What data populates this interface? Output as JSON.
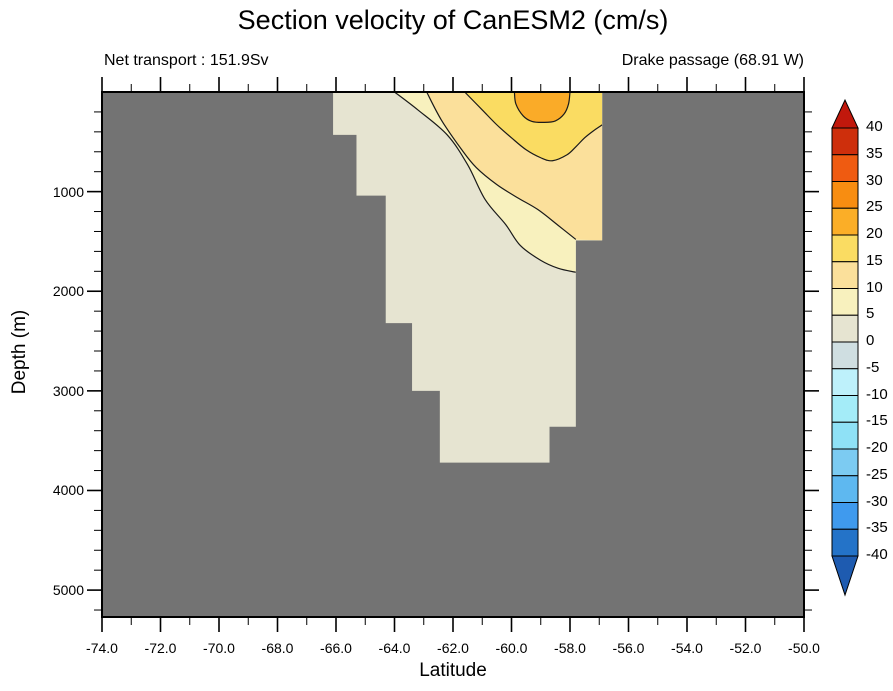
{
  "header": {
    "title": "Section velocity of CanESM2 (cm/s)",
    "left_annotation": "Net transport : 151.9Sv",
    "right_annotation": "Drake passage (68.91 W)"
  },
  "chart_data": {
    "type": "filled_contour_section",
    "title": "Section velocity of CanESM2 (cm/s)",
    "units": "cm/s",
    "net_transport": "151.9Sv",
    "section_location": "Drake passage (68.91 W)",
    "xlabel": "Latitude",
    "ylabel": "Depth (m)",
    "grid": false,
    "background_color": "#737373",
    "frame_color": "#000000",
    "contour_line_color": "#1a1a1a",
    "x_axis": {
      "min": -74,
      "max": -50,
      "major_tick_step": 2,
      "minor_tick_step": 1,
      "major_tick_labels": [
        "-74.0",
        "-72.0",
        "-70.0",
        "-68.0",
        "-66.0",
        "-64.0",
        "-62.0",
        "-60.0",
        "-58.0",
        "-56.0",
        "-54.0",
        "-52.0",
        "-50.0"
      ]
    },
    "y_axis": {
      "min": 0,
      "max": 5270,
      "inverted": true,
      "major_tick_step_m": 1000,
      "minor_tick_step_m": 200,
      "major_tick_labels": [
        "1000",
        "2000",
        "3000",
        "4000",
        "5000"
      ]
    },
    "fill_levels": [
      {
        "min": 0,
        "max": 5,
        "color": "#E6E4D1"
      },
      {
        "min": 5,
        "max": 10,
        "color": "#F8F1BE"
      },
      {
        "min": 10,
        "max": 15,
        "color": "#FBE09B"
      },
      {
        "min": 15,
        "max": 20,
        "color": "#FADC62"
      },
      {
        "min": 20,
        "max": 25,
        "color": "#FAAB28"
      }
    ],
    "water_polygon": [
      [
        -66.1,
        0
      ],
      [
        -66.1,
        430
      ],
      [
        -65.3,
        430
      ],
      [
        -65.3,
        1040
      ],
      [
        -64.3,
        1040
      ],
      [
        -64.3,
        2320
      ],
      [
        -63.4,
        2320
      ],
      [
        -63.4,
        3000
      ],
      [
        -62.45,
        3000
      ],
      [
        -62.45,
        3720
      ],
      [
        -58.7,
        3720
      ],
      [
        -58.7,
        3360
      ],
      [
        -57.8,
        3360
      ],
      [
        -57.8,
        1490
      ],
      [
        -56.9,
        1490
      ],
      [
        -56.9,
        0
      ]
    ],
    "contour_lines": [
      {
        "level": 5,
        "points": [
          [
            -64.0,
            0
          ],
          [
            -63.2,
            180
          ],
          [
            -62.2,
            430
          ],
          [
            -61.5,
            730
          ],
          [
            -60.9,
            1080
          ],
          [
            -60.2,
            1330
          ],
          [
            -59.7,
            1540
          ],
          [
            -59.0,
            1690
          ],
          [
            -58.4,
            1770
          ],
          [
            -57.8,
            1810
          ]
        ],
        "close_points": [
          [
            -57.8,
            1490
          ],
          [
            -56.9,
            1490
          ],
          [
            -56.9,
            0
          ]
        ]
      },
      {
        "level": 10,
        "points": [
          [
            -62.9,
            0
          ],
          [
            -62.4,
            280
          ],
          [
            -61.7,
            580
          ],
          [
            -61.2,
            760
          ],
          [
            -60.5,
            930
          ],
          [
            -59.8,
            1060
          ],
          [
            -59.1,
            1180
          ],
          [
            -58.4,
            1340
          ],
          [
            -57.8,
            1480
          ]
        ],
        "close_points": [
          [
            -56.9,
            1490
          ],
          [
            -56.9,
            0
          ]
        ]
      },
      {
        "level": 15,
        "points": [
          [
            -61.6,
            0
          ],
          [
            -61.0,
            180
          ],
          [
            -60.5,
            330
          ],
          [
            -60.0,
            460
          ],
          [
            -59.5,
            580
          ],
          [
            -59.0,
            660
          ],
          [
            -58.6,
            690
          ],
          [
            -58.1,
            630
          ],
          [
            -57.8,
            550
          ],
          [
            -57.5,
            460
          ],
          [
            -57.2,
            390
          ],
          [
            -56.9,
            330
          ]
        ],
        "close_points": [
          [
            -56.9,
            0
          ]
        ]
      },
      {
        "level": 20,
        "points": [
          [
            -59.9,
            0
          ],
          [
            -59.85,
            120
          ],
          [
            -59.6,
            240
          ],
          [
            -59.3,
            295
          ],
          [
            -58.9,
            305
          ],
          [
            -58.5,
            290
          ],
          [
            -58.2,
            220
          ],
          [
            -58.05,
            120
          ],
          [
            -58.0,
            0
          ]
        ],
        "close_points": []
      }
    ],
    "velocity_core": {
      "lat": -58.9,
      "depth_m": 150,
      "band": "20-25 cm/s"
    },
    "colorbar": {
      "orientation": "vertical",
      "extend": "both",
      "levels": [
        -40,
        -35,
        -30,
        -25,
        -20,
        -15,
        -10,
        -5,
        0,
        5,
        10,
        15,
        20,
        25,
        30,
        35,
        40
      ],
      "labels_top_to_bottom": [
        "40",
        "35",
        "30",
        "25",
        "20",
        "15",
        "10",
        "5",
        "0",
        "-5",
        "-10",
        "-15",
        "-20",
        "-25",
        "-30",
        "-35",
        "-40"
      ],
      "band_colors_top_to_bottom": [
        "#CE2F0C",
        "#EF5B11",
        "#F88D11",
        "#FBAE27",
        "#FADC62",
        "#FBE09B",
        "#F8F1BE",
        "#E6E4D1",
        "#CFDEE1",
        "#BEF1FB",
        "#A4ECF8",
        "#8FE1F6",
        "#7CCBF2",
        "#5EB8F0",
        "#3F9AEE",
        "#2473C8"
      ],
      "extend_above_color": "#C1180C",
      "extend_below_color": "#1E5BB0"
    }
  }
}
